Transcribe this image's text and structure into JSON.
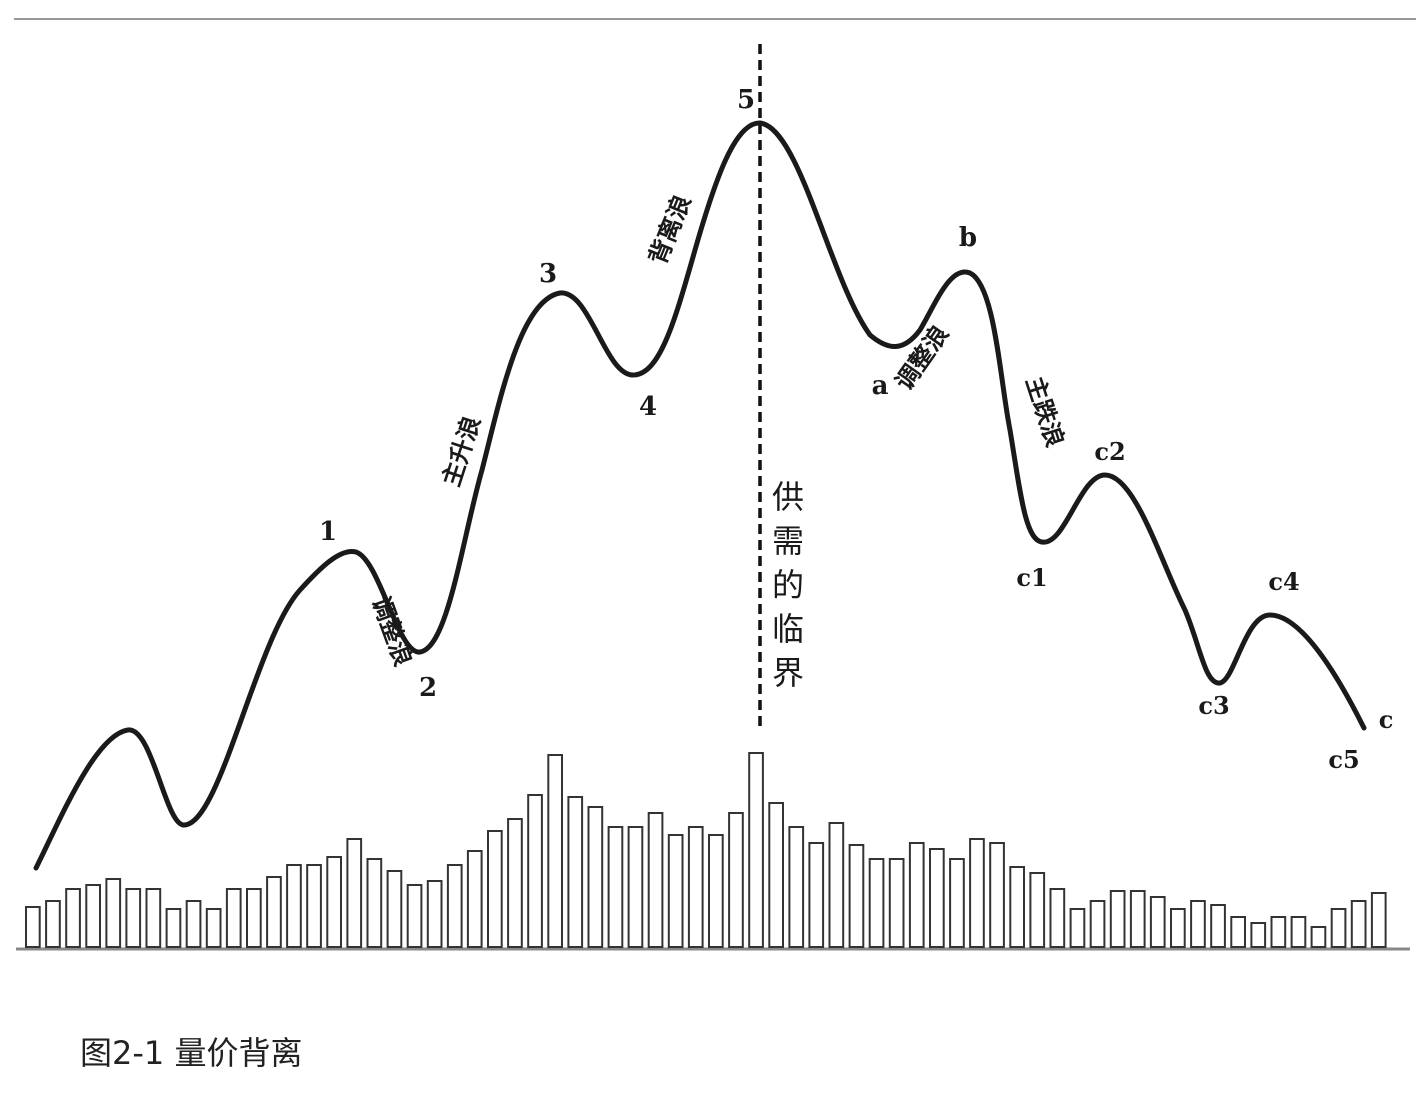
{
  "figure": {
    "caption": "图2-1 量价背离",
    "critical_line_label": "供需的临界",
    "wave_points": [
      {
        "id": "p1",
        "label": "1"
      },
      {
        "id": "p2",
        "label": "2"
      },
      {
        "id": "p3",
        "label": "3"
      },
      {
        "id": "p4",
        "label": "4"
      },
      {
        "id": "p5",
        "label": "5"
      },
      {
        "id": "pa",
        "label": "a"
      },
      {
        "id": "pb",
        "label": "b"
      },
      {
        "id": "pc1",
        "label": "c1"
      },
      {
        "id": "pc2",
        "label": "c2"
      },
      {
        "id": "pc3",
        "label": "c3"
      },
      {
        "id": "pc4",
        "label": "c4"
      },
      {
        "id": "pc5",
        "label": "c5"
      },
      {
        "id": "pc",
        "label": "c"
      }
    ],
    "segment_labels": {
      "correction_1": "调整浪",
      "main_rise": "主升浪",
      "divergence": "背离浪",
      "correction_2": "调整浪",
      "main_fall": "主跌浪"
    },
    "volume_bars": [
      40,
      46,
      58,
      62,
      68,
      58,
      58,
      38,
      46,
      38,
      58,
      58,
      70,
      82,
      82,
      90,
      108,
      88,
      76,
      62,
      66,
      82,
      96,
      116,
      128,
      152,
      192,
      150,
      140,
      120,
      120,
      134,
      112,
      120,
      112,
      134,
      194,
      144,
      120,
      104,
      124,
      102,
      88,
      88,
      104,
      98,
      88,
      108,
      104,
      80,
      74,
      58,
      38,
      46,
      56,
      56,
      50,
      38,
      46,
      42,
      30,
      24,
      30,
      30,
      20,
      38,
      46,
      54
    ]
  }
}
